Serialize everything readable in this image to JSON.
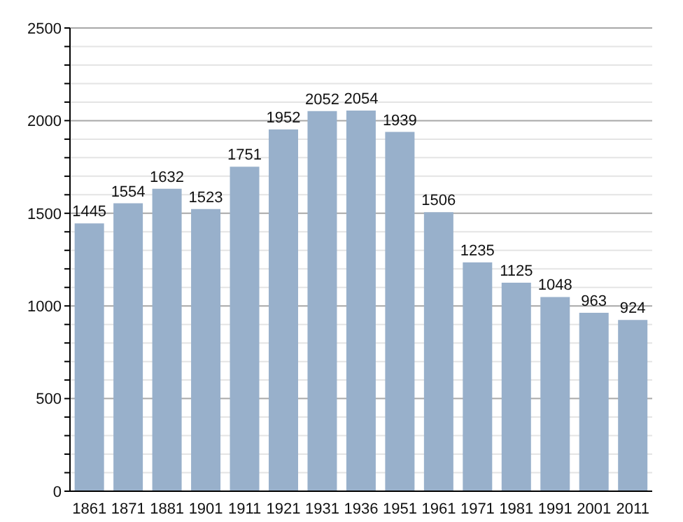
{
  "chart_data": {
    "type": "bar",
    "categories": [
      "1861",
      "1871",
      "1881",
      "1901",
      "1911",
      "1921",
      "1931",
      "1936",
      "1951",
      "1961",
      "1971",
      "1981",
      "1991",
      "2001",
      "2011"
    ],
    "values": [
      1445,
      1554,
      1632,
      1523,
      1751,
      1952,
      2052,
      2054,
      1939,
      1506,
      1235,
      1125,
      1048,
      963,
      924
    ],
    "color": "#98b0cb",
    "ylim": [
      0,
      2500
    ],
    "yticks": [
      0,
      {
        "value": 100,
        "label": null
      },
      {
        "value": 200,
        "label": null
      },
      {
        "value": 300,
        "label": null
      },
      {
        "value": 400,
        "label": null
      },
      500,
      {
        "value": 600,
        "label": null
      },
      {
        "value": 700,
        "label": null
      },
      {
        "value": 800,
        "label": null
      },
      {
        "value": 900,
        "label": null
      },
      1000,
      {
        "value": 1100,
        "label": null
      },
      {
        "value": 1200,
        "label": null
      },
      {
        "value": 1300,
        "label": null
      },
      {
        "value": 1400,
        "label": null
      },
      1500,
      {
        "value": 1600,
        "label": null
      },
      {
        "value": 1700,
        "label": null
      },
      {
        "value": 1800,
        "label": null
      },
      {
        "value": 1900,
        "label": null
      },
      2000,
      {
        "value": 2100,
        "label": null
      },
      {
        "value": 2200,
        "label": null
      },
      {
        "value": 2300,
        "label": null
      },
      {
        "value": 2400,
        "label": null
      },
      2500
    ],
    "grid": "y",
    "data_labels": true
  }
}
